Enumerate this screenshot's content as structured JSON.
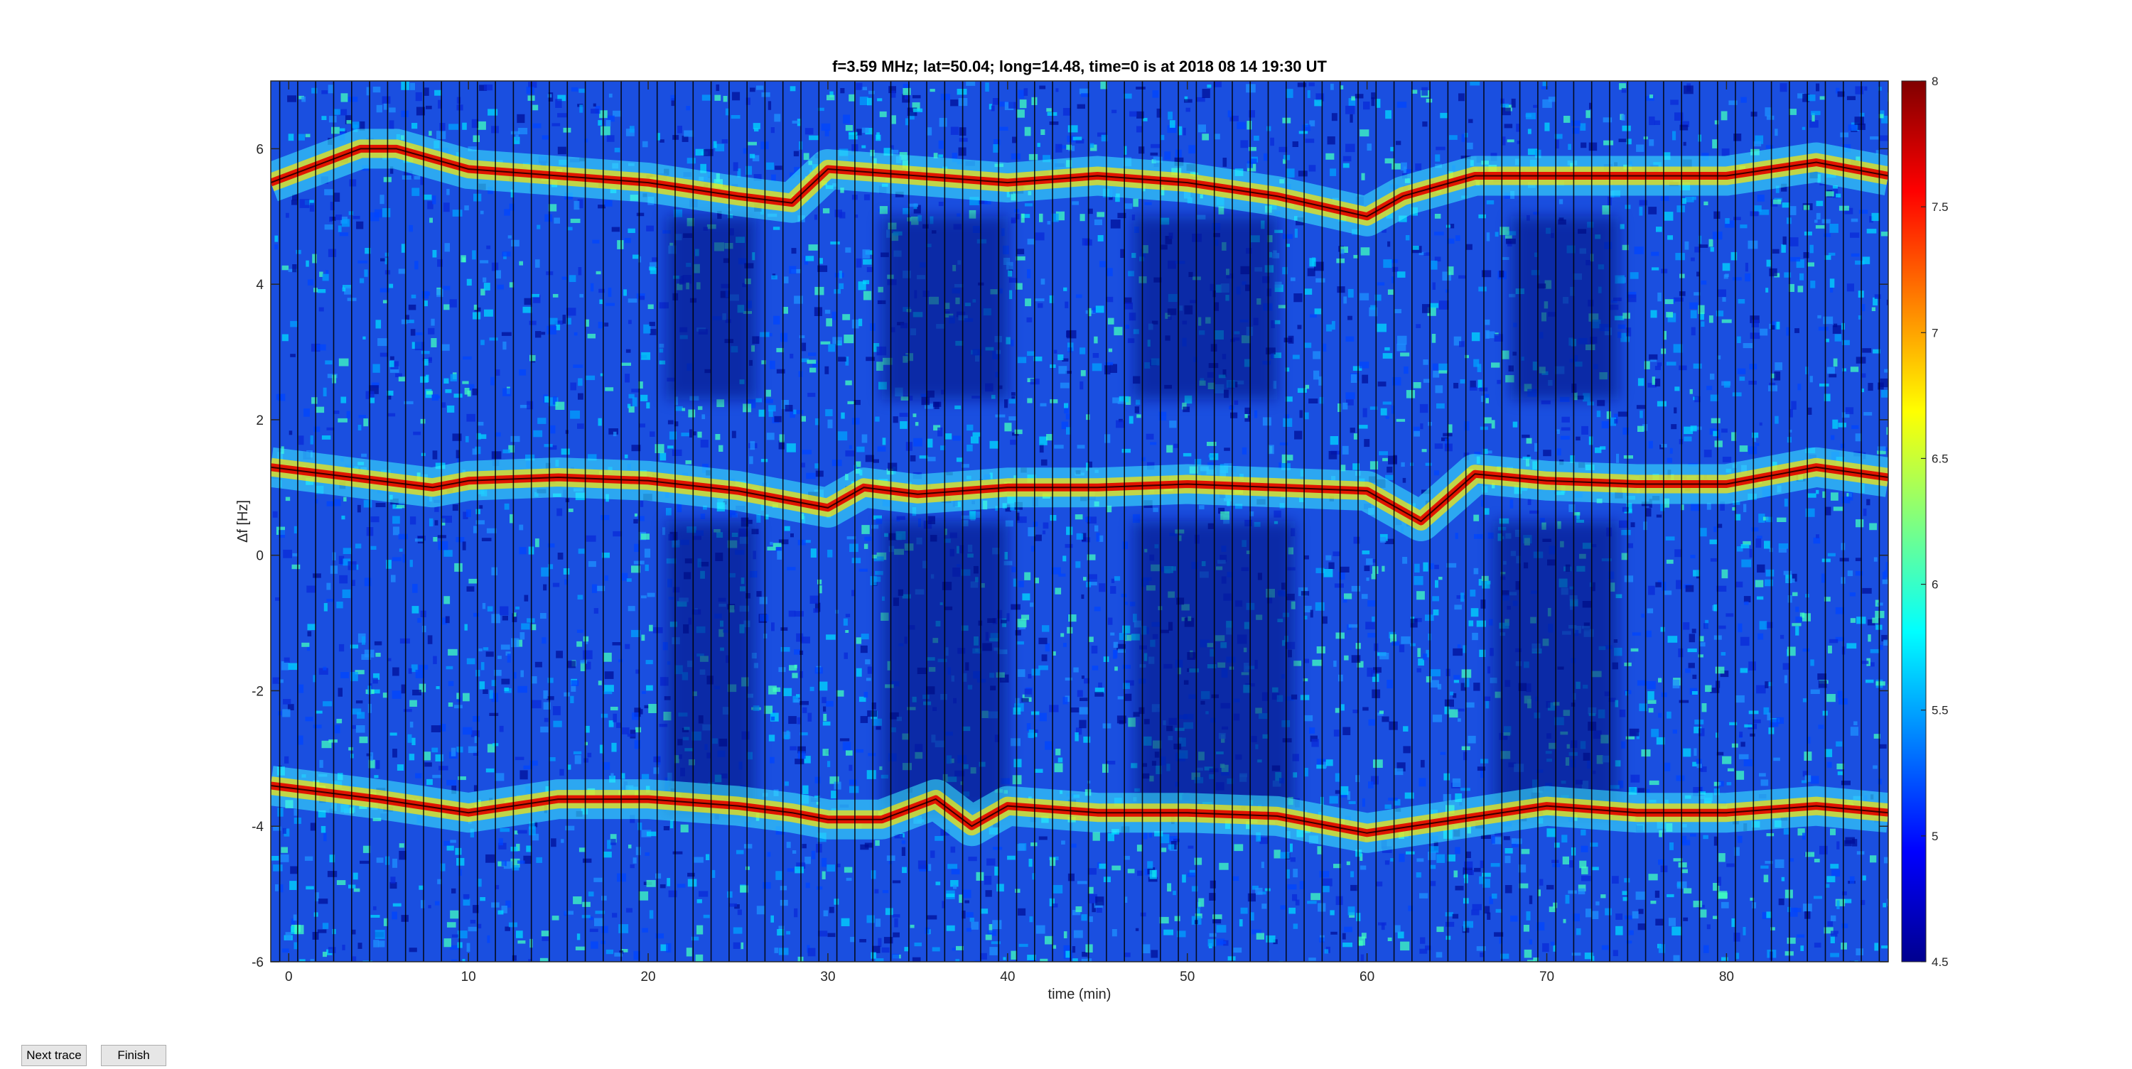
{
  "buttons": {
    "next_trace": "Next trace",
    "finish": "Finish"
  },
  "chart_data": {
    "type": "heatmap",
    "title": "f=3.59 MHz;  lat=50.04; long=14.48, time=0 is at 2018 08 14 19:30 UT",
    "xlabel": "time (min)",
    "ylabel": "Δf [Hz]",
    "xlim": [
      -1,
      89
    ],
    "ylim": [
      -6,
      7
    ],
    "xticks": [
      0,
      10,
      20,
      30,
      40,
      50,
      60,
      70,
      80
    ],
    "yticks": [
      -6,
      -4,
      -2,
      0,
      2,
      4,
      6
    ],
    "colorbar": {
      "range": [
        4.5,
        8
      ],
      "ticks": [
        4.5,
        5,
        5.5,
        6,
        6.5,
        7,
        7.5,
        8
      ],
      "colormap": "jet"
    },
    "grid": false,
    "traces": [
      {
        "x": [
          -1,
          2,
          4,
          6,
          10,
          15,
          20,
          25,
          28,
          30,
          35,
          40,
          45,
          50,
          55,
          60,
          62,
          66,
          70,
          75,
          80,
          85,
          89
        ],
        "y": [
          5.5,
          5.8,
          6.0,
          6.0,
          5.7,
          5.6,
          5.5,
          5.3,
          5.2,
          5.7,
          5.6,
          5.5,
          5.6,
          5.5,
          5.3,
          5.0,
          5.3,
          5.6,
          5.6,
          5.6,
          5.6,
          5.8,
          5.6
        ]
      },
      {
        "x": [
          -1,
          2,
          5,
          8,
          10,
          15,
          20,
          25,
          30,
          32,
          35,
          40,
          45,
          50,
          55,
          60,
          63,
          66,
          70,
          75,
          80,
          85,
          89
        ],
        "y": [
          1.3,
          1.2,
          1.1,
          1.0,
          1.1,
          1.15,
          1.1,
          0.95,
          0.7,
          1.0,
          0.9,
          1.0,
          1.0,
          1.05,
          1.0,
          0.95,
          0.5,
          1.2,
          1.1,
          1.05,
          1.05,
          1.3,
          1.15
        ]
      },
      {
        "x": [
          -1,
          2,
          5,
          10,
          15,
          20,
          25,
          28,
          30,
          33,
          36,
          38,
          40,
          45,
          50,
          55,
          60,
          65,
          70,
          75,
          80,
          85,
          89
        ],
        "y": [
          -3.4,
          -3.5,
          -3.6,
          -3.8,
          -3.6,
          -3.6,
          -3.7,
          -3.8,
          -3.9,
          -3.9,
          -3.6,
          -4.0,
          -3.7,
          -3.8,
          -3.8,
          -3.85,
          -4.1,
          -3.9,
          -3.7,
          -3.8,
          -3.8,
          -3.7,
          -3.8
        ]
      }
    ],
    "dark_blocks": [
      {
        "x": [
          21,
          26
        ],
        "y": [
          2.3,
          5.0
        ]
      },
      {
        "x": [
          21,
          26
        ],
        "y": [
          -3.8,
          0.5
        ]
      },
      {
        "x": [
          33,
          40
        ],
        "y": [
          2.3,
          5.0
        ]
      },
      {
        "x": [
          33,
          40
        ],
        "y": [
          -3.8,
          0.5
        ]
      },
      {
        "x": [
          47,
          55
        ],
        "y": [
          2.3,
          5.0
        ]
      },
      {
        "x": [
          47,
          56
        ],
        "y": [
          -3.8,
          0.5
        ]
      },
      {
        "x": [
          68,
          74
        ],
        "y": [
          2.3,
          5.0
        ]
      },
      {
        "x": [
          67,
          74
        ],
        "y": [
          -3.8,
          0.5
        ]
      }
    ],
    "vertical_line_spacing_min": 1
  }
}
